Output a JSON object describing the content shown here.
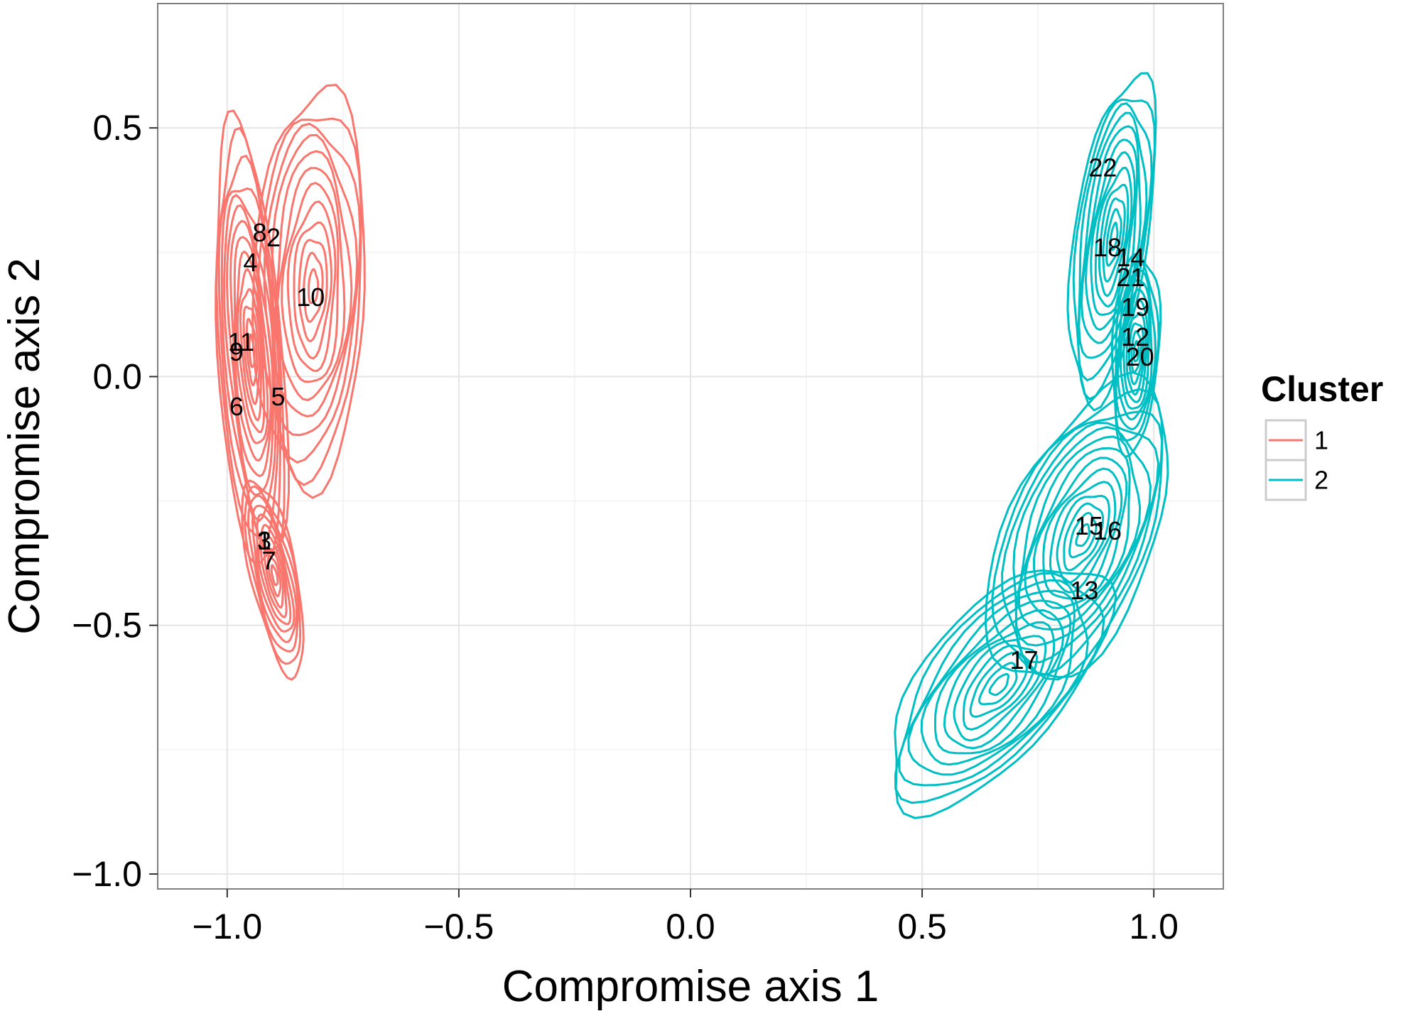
{
  "chart_data": {
    "type": "scatter",
    "subtype": "density-contour",
    "title": "",
    "xlabel": "Compromise axis 1",
    "ylabel": "Compromise axis 2",
    "xlim": [
      -1.15,
      1.15
    ],
    "ylim": [
      -1.03,
      0.75
    ],
    "xticks": [
      -1.0,
      -0.5,
      0.0,
      0.5,
      1.0
    ],
    "yticks": [
      -1.0,
      -0.5,
      0.0,
      0.5
    ],
    "xtick_labels": [
      "−1.0",
      "−0.5",
      "0.0",
      "0.5",
      "1.0"
    ],
    "ytick_labels": [
      "−1.0",
      "−0.5",
      "0.0",
      "0.5"
    ],
    "grid": true,
    "legend": {
      "title": "Cluster",
      "placement": "right",
      "entries": [
        "1",
        "2"
      ]
    },
    "series": [
      {
        "name": "1",
        "color": "#F8766D",
        "points": [
          {
            "label": "1",
            "x": -0.92,
            "y": -0.33
          },
          {
            "label": "2",
            "x": -0.9,
            "y": 0.28
          },
          {
            "label": "3",
            "x": -0.92,
            "y": -0.33
          },
          {
            "label": "4",
            "x": -0.95,
            "y": 0.23
          },
          {
            "label": "5",
            "x": -0.89,
            "y": -0.04
          },
          {
            "label": "6",
            "x": -0.98,
            "y": -0.06
          },
          {
            "label": "7",
            "x": -0.91,
            "y": -0.37
          },
          {
            "label": "8",
            "x": -0.93,
            "y": 0.29
          },
          {
            "label": "9",
            "x": -0.98,
            "y": 0.05
          },
          {
            "label": "10",
            "x": -0.82,
            "y": 0.16
          },
          {
            "label": "11",
            "x": -0.97,
            "y": 0.07
          }
        ]
      },
      {
        "name": "2",
        "color": "#00BFC4",
        "points": [
          {
            "label": "12",
            "x": 0.96,
            "y": 0.08
          },
          {
            "label": "13",
            "x": 0.85,
            "y": -0.43
          },
          {
            "label": "14",
            "x": 0.95,
            "y": 0.24
          },
          {
            "label": "15",
            "x": 0.86,
            "y": -0.3
          },
          {
            "label": "16",
            "x": 0.9,
            "y": -0.31
          },
          {
            "label": "17",
            "x": 0.72,
            "y": -0.57
          },
          {
            "label": "18",
            "x": 0.9,
            "y": 0.26
          },
          {
            "label": "19",
            "x": 0.96,
            "y": 0.14
          },
          {
            "label": "20",
            "x": 0.97,
            "y": 0.04
          },
          {
            "label": "21",
            "x": 0.95,
            "y": 0.2
          },
          {
            "label": "22",
            "x": 0.89,
            "y": 0.42
          }
        ]
      }
    ]
  }
}
